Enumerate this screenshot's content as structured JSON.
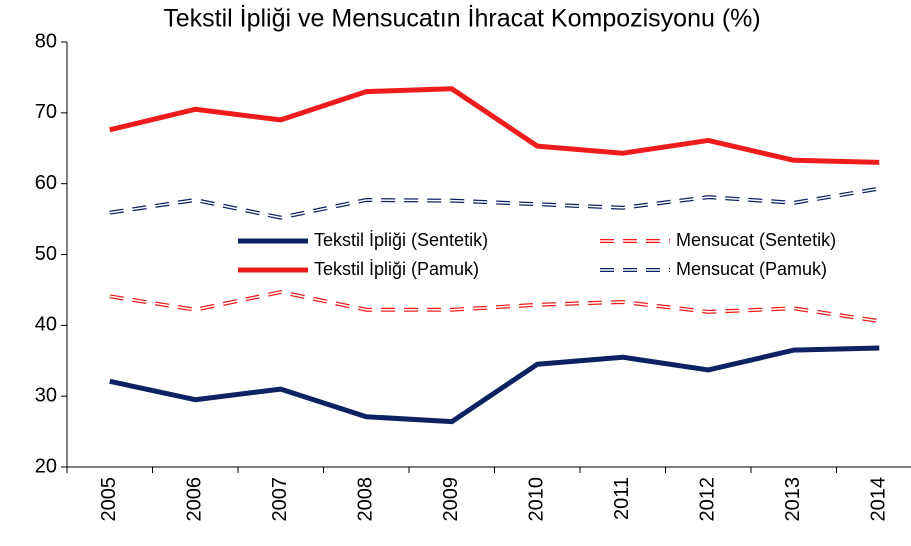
{
  "chart_data": {
    "type": "line",
    "title": "Tekstil İpliği ve Mensucatın İhracat Kompozisyonu (%)",
    "categories": [
      "2005",
      "2006",
      "2007",
      "2008",
      "2009",
      "2010",
      "2011",
      "2012",
      "2013",
      "2014"
    ],
    "series": [
      {
        "name": "Tekstil İpliği (Sentetik)",
        "color": "#0d2262",
        "style": "solid",
        "values": [
          32.1,
          29.5,
          31.0,
          27.1,
          26.4,
          34.5,
          35.5,
          33.7,
          36.5,
          36.8
        ]
      },
      {
        "name": "Mensucat (Sentetik)",
        "color": "#ee1c1c",
        "style": "dashed",
        "values": [
          44.1,
          42.2,
          44.7,
          42.2,
          42.2,
          42.9,
          43.3,
          41.9,
          42.4,
          40.6
        ]
      },
      {
        "name": "Tekstil İpliği (Pamuk)",
        "color": "#ee1c1c",
        "style": "solid",
        "values": [
          67.6,
          70.5,
          69.0,
          73.0,
          73.4,
          65.3,
          64.3,
          66.1,
          63.3,
          63.0
        ]
      },
      {
        "name": "Mensucat (Pamuk)",
        "color": "#0d2262",
        "style": "dashed",
        "values": [
          55.9,
          57.7,
          55.2,
          57.7,
          57.6,
          57.1,
          56.6,
          58.1,
          57.3,
          59.3
        ]
      }
    ],
    "ylim": [
      20,
      80
    ],
    "yticks": [
      20,
      30,
      40,
      50,
      60,
      70,
      80
    ],
    "grid": false,
    "legend": "center"
  }
}
